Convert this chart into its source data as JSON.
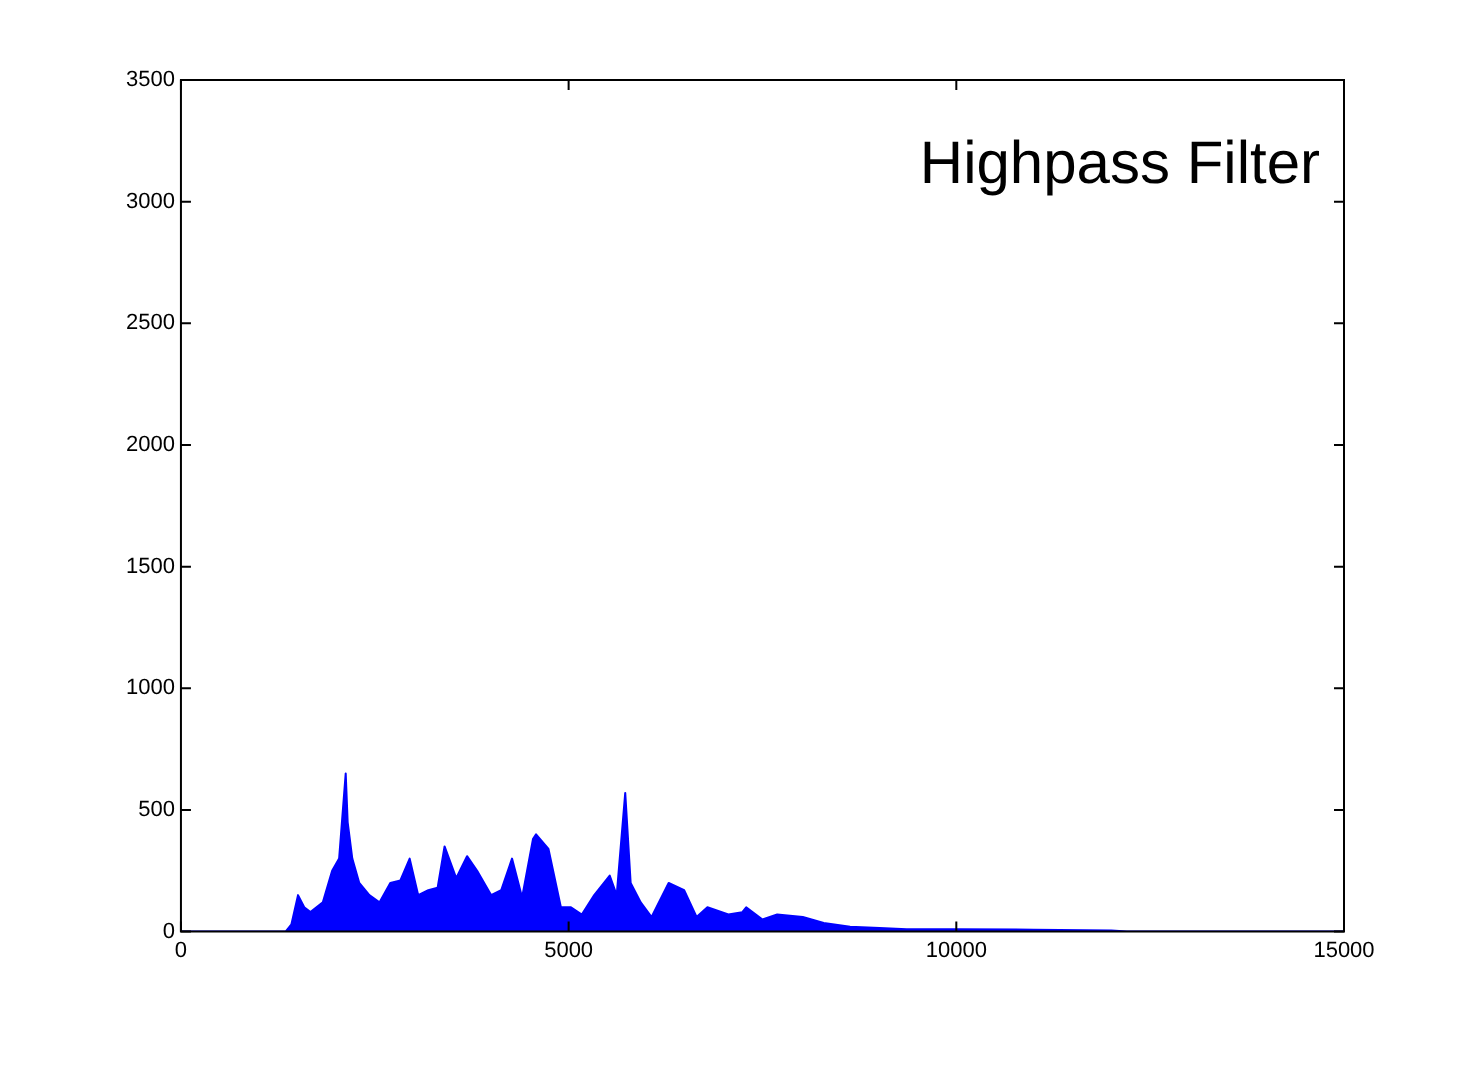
{
  "chart_data": {
    "type": "area",
    "annotations": [
      "Highpass Filter"
    ],
    "x": [
      0,
      1350,
      1425,
      1510,
      1590,
      1670,
      1830,
      1950,
      2040,
      2125,
      2150,
      2210,
      2300,
      2430,
      2560,
      2700,
      2830,
      2950,
      3060,
      3190,
      3310,
      3400,
      3550,
      3690,
      3820,
      4000,
      4130,
      4270,
      4400,
      4540,
      4580,
      4740,
      4900,
      5030,
      5170,
      5330,
      5530,
      5620,
      5730,
      5800,
      5930,
      6070,
      6290,
      6490,
      6650,
      6790,
      7060,
      7240,
      7290,
      7500,
      7690,
      8020,
      8290,
      8630,
      9010,
      9360,
      10000,
      11000,
      12000,
      12200,
      15000
    ],
    "series": [
      {
        "color": "#0000ff",
        "values": [
          0,
          0,
          30,
          150,
          100,
          80,
          120,
          250,
          300,
          650,
          450,
          300,
          200,
          150,
          120,
          200,
          210,
          300,
          150,
          170,
          180,
          350,
          220,
          310,
          250,
          150,
          170,
          300,
          140,
          380,
          400,
          340,
          100,
          100,
          70,
          150,
          230,
          150,
          570,
          200,
          120,
          60,
          200,
          170,
          60,
          100,
          70,
          80,
          100,
          50,
          70,
          60,
          35,
          20,
          15,
          10,
          10,
          8,
          5,
          0,
          0
        ]
      }
    ],
    "xlim": [
      0,
      15000
    ],
    "xticks": [
      0,
      5000,
      10000,
      15000
    ],
    "ylim": [
      0,
      3500
    ],
    "yticks": [
      0,
      500,
      1000,
      1500,
      2000,
      2500,
      3000,
      3500
    ],
    "grid": false,
    "legend": false,
    "marker": "none",
    "line_style": "solid"
  }
}
